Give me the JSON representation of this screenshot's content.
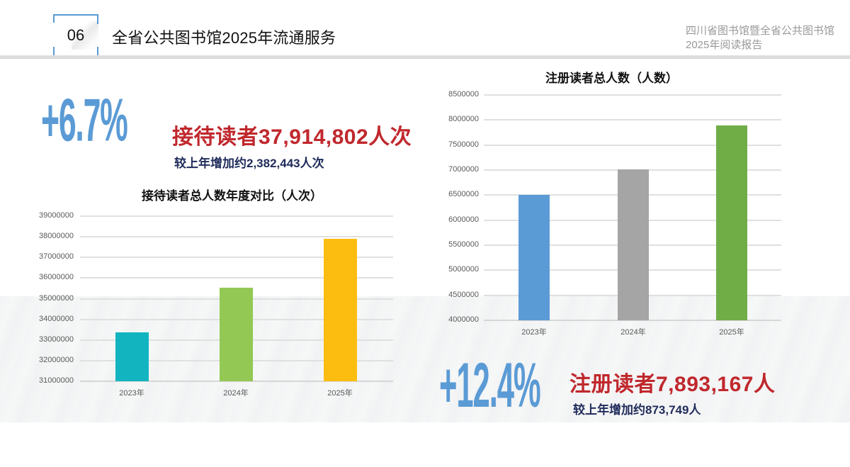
{
  "header": {
    "section_number": "06",
    "page_title": "全省公共图书馆2025年流通服务",
    "report_title_line1": "四川省图书馆暨全省公共图书馆",
    "report_title_line2": "2025年阅读报告"
  },
  "visitors": {
    "growth_pct": "+6.7%",
    "headline": "接待读者37,914,802人次",
    "sub": "较上年增加约2,382,443人次"
  },
  "registered": {
    "growth_pct": "+12.4%",
    "headline": "注册读者7,893,167人",
    "sub": "较上年增加约873,749人"
  },
  "colors": {
    "accent_blue": "#5b9bd5",
    "headline_red": "#c0282d",
    "sub_navy": "#1f2b5a"
  },
  "chart_data": [
    {
      "type": "bar",
      "title": "接待读者总人数年度对比（人次）",
      "categories": [
        "2023年",
        "2024年",
        "2025年"
      ],
      "values": [
        33370000,
        35532359,
        37914802
      ],
      "colors": [
        "#12b5bf",
        "#92c853",
        "#fdbd10"
      ],
      "xlabel": "",
      "ylabel": "",
      "ylim": [
        31000000,
        39000000
      ],
      "yticks": [
        "39000000",
        "38000000",
        "37000000",
        "36000000",
        "35000000",
        "34000000",
        "33000000",
        "32000000",
        "31000000"
      ],
      "grid": true,
      "legend": false
    },
    {
      "type": "bar",
      "title": "注册读者总人数（人数）",
      "categories": [
        "2023年",
        "2024年",
        "2025年"
      ],
      "values": [
        6510000,
        7019418,
        7893167
      ],
      "colors": [
        "#5b9bd5",
        "#a5a5a5",
        "#70ad47"
      ],
      "xlabel": "",
      "ylabel": "",
      "ylim": [
        4000000,
        8500000
      ],
      "yticks": [
        "8500000",
        "8000000",
        "7500000",
        "7000000",
        "6500000",
        "6000000",
        "5500000",
        "5000000",
        "4500000",
        "4000000"
      ],
      "grid": true,
      "legend": false
    }
  ]
}
